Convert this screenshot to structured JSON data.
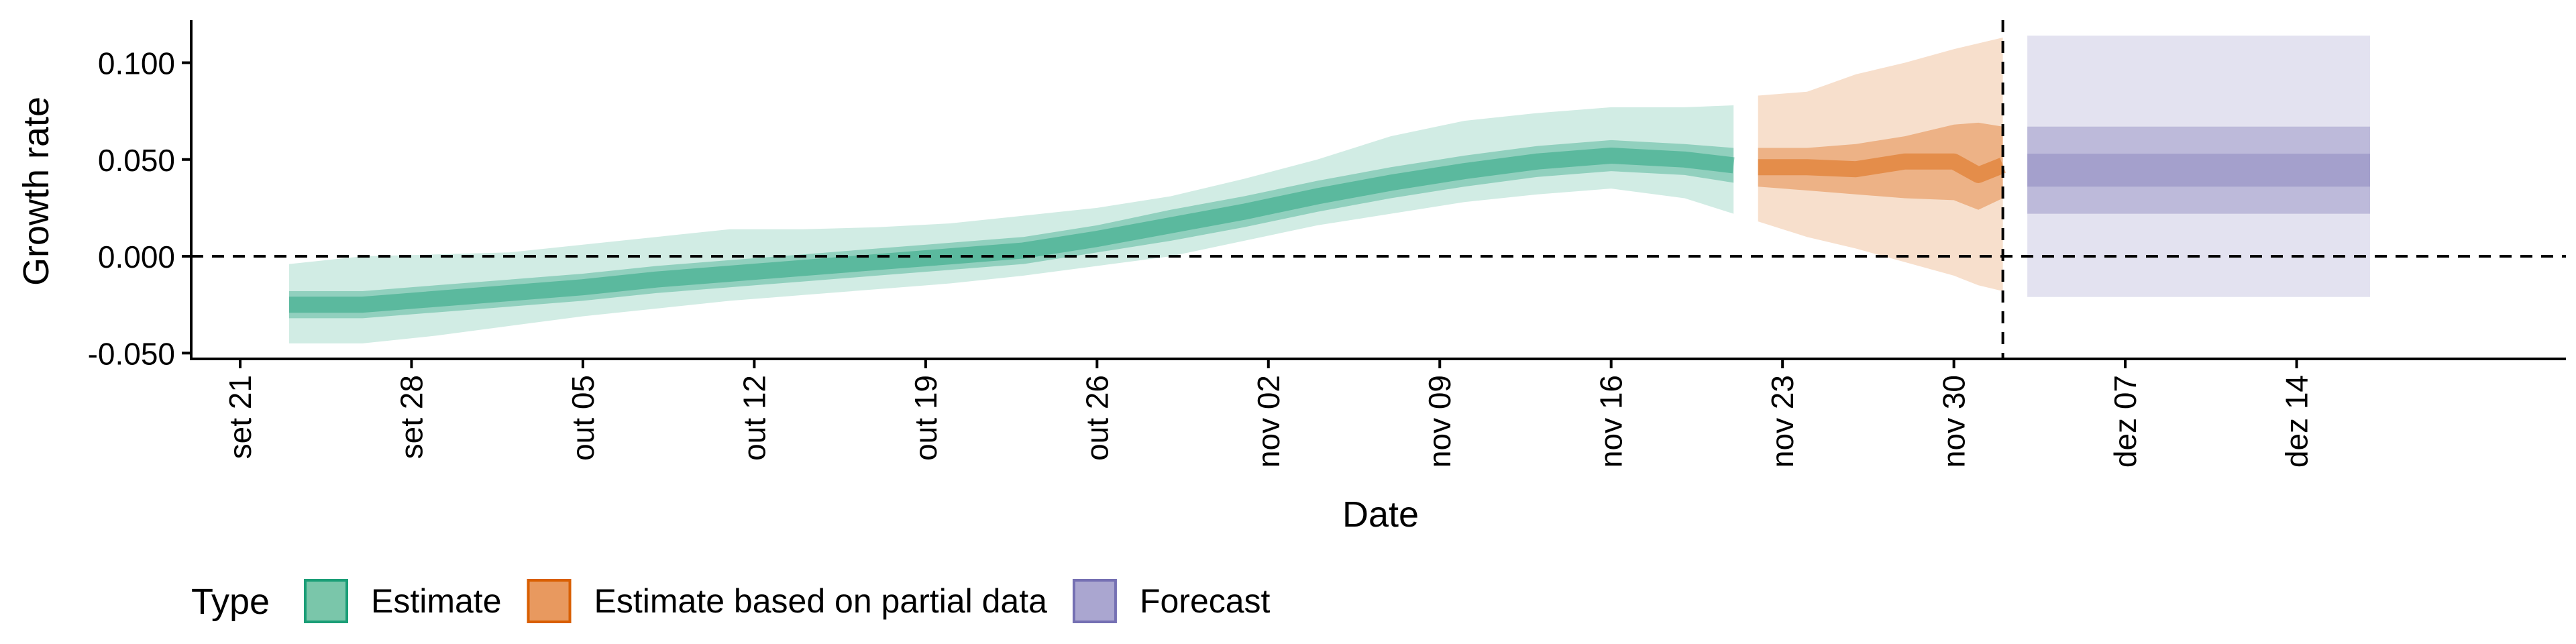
{
  "chart_data": {
    "type": "area",
    "title": "",
    "xlabel": "Date",
    "ylabel": "Growth rate",
    "x_ticks": [
      "2020-09-21",
      "2020-09-28",
      "2020-10-05",
      "2020-10-12",
      "2020-10-19",
      "2020-10-26",
      "2020-11-02",
      "2020-11-09",
      "2020-11-16",
      "2020-11-23",
      "2020-11-30",
      "2020-12-07",
      "2020-12-14"
    ],
    "x_tick_labels": [
      "set 21",
      "set 28",
      "out 05",
      "out 12",
      "out 19",
      "out 26",
      "nov 02",
      "nov 09",
      "nov 16",
      "nov 23",
      "nov 30",
      "dez 07",
      "dez 14"
    ],
    "xlim": [
      "2020-09-19",
      "2020-12-25"
    ],
    "y_ticks": [
      -0.05,
      0,
      0.05,
      0.1
    ],
    "y_tick_labels": [
      "-0.050",
      "0.000",
      "0.050",
      "0.100"
    ],
    "ylim": [
      -0.053,
      0.122
    ],
    "hline": 0,
    "vline": "2020-12-02",
    "legend": {
      "title": "Type",
      "position": "bottom-left",
      "items": [
        {
          "label": "Estimate",
          "fill": "#7ac6aa",
          "border": "#1b9e77"
        },
        {
          "label": "Estimate based on partial data",
          "fill": "#e8995f",
          "border": "#d95f02"
        },
        {
          "label": "Forecast",
          "fill": "#aaa6d0",
          "border": "#7570b3"
        }
      ]
    },
    "series": [
      {
        "name": "Estimate",
        "colors": {
          "outer": "#1b9e77",
          "inner": "#1b9e77",
          "median": "#1b9e77"
        },
        "x": [
          "2020-09-23",
          "2020-09-26",
          "2020-09-29",
          "2020-10-02",
          "2020-10-05",
          "2020-10-08",
          "2020-10-11",
          "2020-10-14",
          "2020-10-17",
          "2020-10-20",
          "2020-10-23",
          "2020-10-26",
          "2020-10-29",
          "2020-11-01",
          "2020-11-04",
          "2020-11-07",
          "2020-11-10",
          "2020-11-13",
          "2020-11-16",
          "2020-11-19",
          "2020-11-21"
        ],
        "median": [
          -0.025,
          -0.025,
          -0.022,
          -0.019,
          -0.016,
          -0.012,
          -0.009,
          -0.006,
          -0.003,
          0.0,
          0.003,
          0.009,
          0.016,
          0.023,
          0.031,
          0.038,
          0.044,
          0.049,
          0.052,
          0.05,
          0.047
        ],
        "outer_low": [
          -0.045,
          -0.045,
          -0.041,
          -0.036,
          -0.031,
          -0.027,
          -0.023,
          -0.02,
          -0.017,
          -0.014,
          -0.01,
          -0.005,
          0.0,
          0.008,
          0.016,
          0.022,
          0.028,
          0.032,
          0.035,
          0.03,
          0.022
        ],
        "outer_high": [
          -0.004,
          0.0,
          0.001,
          0.002,
          0.006,
          0.01,
          0.014,
          0.014,
          0.015,
          0.017,
          0.021,
          0.025,
          0.031,
          0.04,
          0.05,
          0.062,
          0.07,
          0.074,
          0.077,
          0.077,
          0.078
        ],
        "inner_low": [
          -0.032,
          -0.032,
          -0.029,
          -0.026,
          -0.023,
          -0.019,
          -0.016,
          -0.013,
          -0.01,
          -0.007,
          -0.004,
          0.002,
          0.008,
          0.015,
          0.023,
          0.03,
          0.036,
          0.041,
          0.044,
          0.042,
          0.038
        ],
        "inner_high": [
          -0.018,
          -0.018,
          -0.015,
          -0.012,
          -0.009,
          -0.005,
          -0.002,
          0.001,
          0.004,
          0.007,
          0.01,
          0.016,
          0.024,
          0.031,
          0.039,
          0.046,
          0.052,
          0.057,
          0.06,
          0.058,
          0.056
        ]
      },
      {
        "name": "Estimate based on partial data",
        "colors": {
          "outer": "#d95f02",
          "inner": "#d95f02",
          "median": "#d95f02"
        },
        "x": [
          "2020-11-22",
          "2020-11-24",
          "2020-11-26",
          "2020-11-28",
          "2020-11-30",
          "2020-12-01",
          "2020-12-02"
        ],
        "median": [
          0.046,
          0.046,
          0.045,
          0.049,
          0.049,
          0.042,
          0.047
        ],
        "outer_low": [
          0.018,
          0.01,
          0.004,
          -0.003,
          -0.01,
          -0.015,
          -0.018
        ],
        "outer_high": [
          0.083,
          0.085,
          0.094,
          0.1,
          0.107,
          0.11,
          0.113
        ],
        "inner_low": [
          0.036,
          0.034,
          0.032,
          0.03,
          0.029,
          0.024,
          0.03
        ],
        "inner_high": [
          0.056,
          0.056,
          0.058,
          0.062,
          0.068,
          0.069,
          0.067
        ]
      },
      {
        "name": "Forecast",
        "colors": {
          "outer": "#7570b3",
          "inner": "#7570b3",
          "median": "#7570b3"
        },
        "x": [
          "2020-12-03",
          "2020-12-17"
        ],
        "median": [
          0.044,
          0.044
        ],
        "outer_low": [
          -0.021,
          -0.021
        ],
        "outer_high": [
          0.114,
          0.114
        ],
        "inner_low": [
          0.022,
          0.022
        ],
        "inner_high": [
          0.067,
          0.067
        ],
        "core_low": [
          0.036,
          0.036
        ],
        "core_high": [
          0.053,
          0.053
        ]
      }
    ]
  }
}
